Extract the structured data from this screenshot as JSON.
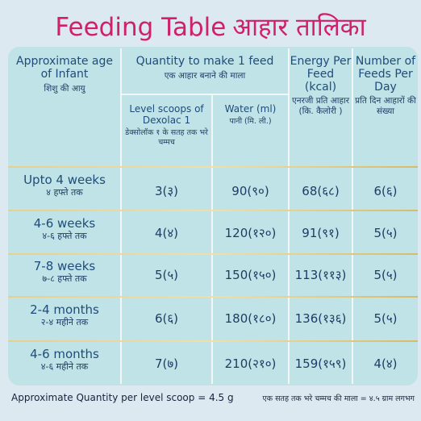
{
  "title": {
    "en": "Feeding Table",
    "hi": "आहार  तालिका"
  },
  "headers": {
    "age": {
      "en": "Approximate age of Infant",
      "hi": "शिशु की आयु"
    },
    "quantity": {
      "en": "Quantity to make 1 feed",
      "hi": "एक आहार बनाने की माला"
    },
    "scoops": {
      "en": "Level scoops of Dexolac 1",
      "hi": "डेक्सोलॉक १ के सतह तक भरे चम्मच"
    },
    "water": {
      "en": "Water (ml)",
      "hi": "पानी (मि. ली.)"
    },
    "energy": {
      "en": "Energy Per Feed (kcal)",
      "hi": "एनरजी प्रति आहार (कि. कैलोरी )"
    },
    "feeds": {
      "en": "Number of Feeds Per Day",
      "hi": "प्रति दिन आहारों की संख्या"
    }
  },
  "rows": [
    {
      "age_en": "Upto 4 weeks",
      "age_hi": "४ हफ्ते तक",
      "scoops": "3(३)",
      "water": "90(९०)",
      "energy": "68(६८)",
      "feeds": "6(६)"
    },
    {
      "age_en": "4-6 weeks",
      "age_hi": "४-६ हफ्ते तक",
      "scoops": "4(४)",
      "water": "120(१२०)",
      "energy": "91(९१)",
      "feeds": "5(५)"
    },
    {
      "age_en": "7-8 weeks",
      "age_hi": "७-८ हफ्ते तक",
      "scoops": "5(५)",
      "water": "150(१५०)",
      "energy": "113(११३)",
      "feeds": "5(५)"
    },
    {
      "age_en": "2-4 months",
      "age_hi": "२-४ महीने तक",
      "scoops": "6(६)",
      "water": "180(१८०)",
      "energy": "136(१३६)",
      "feeds": "5(५)"
    },
    {
      "age_en": "4-6 months",
      "age_hi": "४-६ महीने तक",
      "scoops": "7(७)",
      "water": "210(२१०)",
      "energy": "159(१५९)",
      "feeds": "4(४)"
    }
  ],
  "footer": {
    "en": "Approximate Quantity per level scoop = 4.5 g",
    "hi": "एक सतह तक भरे चम्मच की माला = ४.५  ग्राम लगभग"
  },
  "colors": {
    "title": "#d0206b",
    "panel": "#bfe3e6",
    "text": "#1f3c66",
    "divider_gold": "#e7cf8d"
  }
}
